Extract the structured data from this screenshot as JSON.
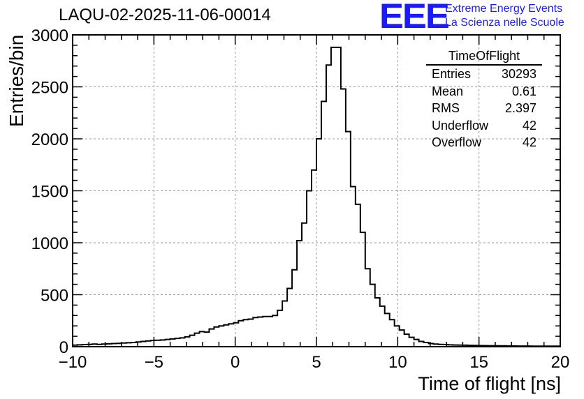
{
  "header": {
    "title": "LAQU-02-2025-11-06-00014",
    "logo_text": "EEE",
    "logo_line1": "Extreme Energy Events",
    "logo_line2": "La Scienza nelle Scuole"
  },
  "stats_box": {
    "title": "TimeOfFlight",
    "rows": [
      {
        "label": "Entries",
        "value": "30293"
      },
      {
        "label": "Mean",
        "value": "0.61"
      },
      {
        "label": "RMS",
        "value": "2.397"
      },
      {
        "label": "Underflow",
        "value": "42"
      },
      {
        "label": "Overflow",
        "value": "42"
      }
    ]
  },
  "colors": {
    "accent": "#1a1aff",
    "line": "#000000",
    "grid": "#999999"
  },
  "chart_data": {
    "type": "bar",
    "style": "step-histogram",
    "title": "LAQU-02-2025-11-06-00014",
    "xlabel": "Time of flight [ns]",
    "ylabel": "Entries/bin",
    "xlim": [
      -10,
      20
    ],
    "ylim": [
      0,
      3000
    ],
    "grid": true,
    "xticks": [
      -10,
      -5,
      0,
      5,
      10,
      15,
      20
    ],
    "xtick_labels": [
      "−10",
      "−5",
      "0",
      "5",
      "10",
      "15",
      "20"
    ],
    "yticks": [
      0,
      500,
      1000,
      1500,
      2000,
      2500,
      3000
    ],
    "ytick_labels": [
      "0",
      "500",
      "1000",
      "1500",
      "2000",
      "2500",
      "3000"
    ],
    "bin_width": 0.3,
    "bin_edges_start": -10,
    "values": [
      15,
      18,
      20,
      22,
      25,
      22,
      25,
      28,
      30,
      32,
      35,
      38,
      40,
      45,
      50,
      55,
      60,
      62,
      65,
      70,
      75,
      80,
      85,
      95,
      110,
      130,
      145,
      140,
      170,
      190,
      200,
      210,
      220,
      230,
      250,
      260,
      265,
      280,
      285,
      290,
      290,
      300,
      350,
      440,
      560,
      740,
      1020,
      1190,
      1500,
      1700,
      2000,
      2360,
      2710,
      2880,
      2880,
      2480,
      2070,
      1540,
      1370,
      1100,
      750,
      600,
      470,
      390,
      320,
      260,
      200,
      160,
      120,
      90,
      70,
      50,
      40,
      30,
      25,
      22,
      20,
      18,
      16,
      15,
      14,
      13,
      12,
      11,
      10,
      9,
      9,
      8,
      8,
      7,
      7,
      6,
      6,
      6,
      5,
      5,
      5,
      5,
      5,
      5
    ]
  }
}
